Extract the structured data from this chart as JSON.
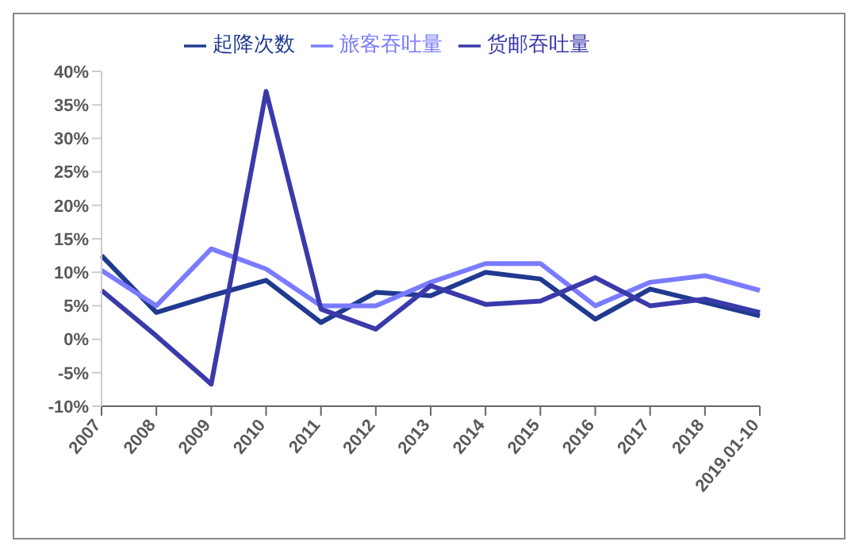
{
  "chart_data": {
    "type": "line",
    "categories": [
      "2007",
      "2008",
      "2009",
      "2010",
      "2011",
      "2012",
      "2013",
      "2014",
      "2015",
      "2016",
      "2017",
      "2018",
      "2019.01-10"
    ],
    "series": [
      {
        "name": "起降次数",
        "color": "#1f3a8f",
        "values": [
          12.5,
          4,
          6.5,
          8.8,
          2.5,
          7,
          6.5,
          10,
          9,
          3,
          7.5,
          5.5,
          3.5
        ]
      },
      {
        "name": "旅客吞吐量",
        "color": "#7b7bff",
        "values": [
          10.3,
          5,
          13.5,
          10.5,
          5,
          5,
          8.5,
          11.3,
          11.3,
          5,
          8.5,
          9.5,
          7.3
        ]
      },
      {
        "name": "货邮吞吐量",
        "color": "#3a3aaa",
        "values": [
          7.3,
          0.5,
          -6.7,
          37,
          4.5,
          1.5,
          8,
          5.2,
          5.7,
          9.2,
          5,
          6,
          4
        ]
      }
    ],
    "ylim": [
      -10,
      40
    ],
    "yticks": [
      {
        "value": -10,
        "label": "-10%"
      },
      {
        "value": -5,
        "label": "-5%"
      },
      {
        "value": 0,
        "label": "0%"
      },
      {
        "value": 5,
        "label": "5%"
      },
      {
        "value": 10,
        "label": "10%"
      },
      {
        "value": 15,
        "label": "15%"
      },
      {
        "value": 20,
        "label": "20%"
      },
      {
        "value": 25,
        "label": "25%"
      },
      {
        "value": 30,
        "label": "30%"
      },
      {
        "value": 35,
        "label": "35%"
      },
      {
        "value": 40,
        "label": "40%"
      }
    ],
    "grid": false,
    "legend": "top",
    "marker": "none",
    "line_style": "solid"
  }
}
